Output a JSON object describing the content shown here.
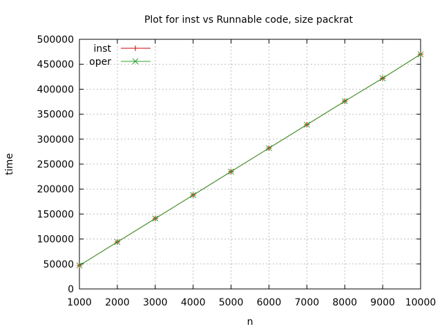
{
  "chart_data": {
    "type": "line",
    "title": "Plot for inst vs Runnable code, size packrat",
    "xlabel": "n",
    "ylabel": "time",
    "xlim": [
      1000,
      10000
    ],
    "ylim": [
      0,
      500000
    ],
    "x_ticks": [
      1000,
      2000,
      3000,
      4000,
      5000,
      6000,
      7000,
      8000,
      9000,
      10000
    ],
    "y_ticks": [
      0,
      50000,
      100000,
      150000,
      200000,
      250000,
      300000,
      350000,
      400000,
      450000,
      500000
    ],
    "grid": true,
    "legend_position": "top-left",
    "x": [
      1000,
      2000,
      3000,
      4000,
      5000,
      6000,
      7000,
      8000,
      9000,
      10000
    ],
    "series": [
      {
        "name": "inst",
        "color": "#cc0000",
        "marker": "plus",
        "values": [
          47000,
          94000,
          141000,
          188000,
          235000,
          282000,
          329000,
          376000,
          422000,
          470000
        ]
      },
      {
        "name": "oper",
        "color": "#2ca02c",
        "marker": "x",
        "values": [
          47000,
          94000,
          141000,
          188000,
          235000,
          282000,
          329000,
          376000,
          422000,
          470000
        ]
      }
    ]
  }
}
